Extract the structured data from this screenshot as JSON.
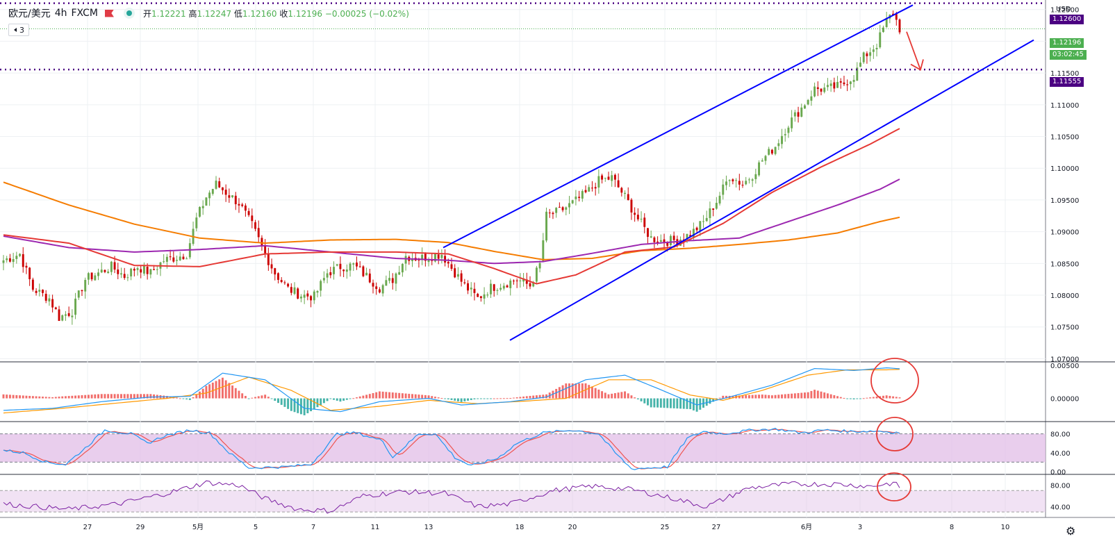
{
  "legend": {
    "symbol": "欧元/美元",
    "timeframe": "4h",
    "source": "FXCM",
    "open_label": "开",
    "open": "1.12221",
    "high_label": "高",
    "high": "1.12247",
    "low_label": "低",
    "low": "1.12160",
    "close_label": "收",
    "close": "1.12196",
    "change": "−0.00025 (−0.02%)",
    "indicator_count": "3"
  },
  "price_tags": {
    "top_line": "1.12600",
    "current_price": "1.12196",
    "countdown": "03:02:45",
    "support_line": "1.11555",
    "currency": "USD"
  },
  "colors": {
    "bull": "#6aa84f",
    "bear": "#cc0000",
    "channel": "#0000ff",
    "ma_fast": "#e53935",
    "ma_mid": "#9c27b0",
    "ma_slow": "#f57c00",
    "level": "#4b0082",
    "stoch_band": "#e1bee7"
  },
  "chart_data": [
    {
      "type": "candlestick",
      "name": "main",
      "x_labels": [
        "27",
        "29",
        "5月",
        "5",
        "7",
        "11",
        "13",
        "18",
        "20",
        "25",
        "27",
        "6月",
        "3",
        "8",
        "10"
      ],
      "y_ticks": [
        "1.12500",
        "1.12000",
        "1.11500",
        "1.11000",
        "1.10500",
        "1.10000",
        "1.09500",
        "1.09000",
        "1.08500",
        "1.08000",
        "1.07500",
        "1.07000"
      ],
      "ylim": [
        1.0695,
        1.1265
      ],
      "horizontal_levels": [
        1.126,
        1.11555
      ],
      "close_series_anchors": [
        [
          0,
          1.0855
        ],
        [
          5,
          1.0865
        ],
        [
          9,
          1.081
        ],
        [
          14,
          1.0795
        ],
        [
          17,
          1.0765
        ],
        [
          21,
          1.0775
        ],
        [
          25,
          1.0825
        ],
        [
          29,
          1.0835
        ],
        [
          33,
          1.0845
        ],
        [
          37,
          1.083
        ],
        [
          41,
          1.0845
        ],
        [
          45,
          1.0835
        ],
        [
          49,
          1.0855
        ],
        [
          53,
          1.086
        ],
        [
          56,
          1.0865
        ],
        [
          59,
          1.092
        ],
        [
          62,
          1.0955
        ],
        [
          65,
          1.0975
        ],
        [
          68,
          1.0962
        ],
        [
          72,
          1.0945
        ],
        [
          76,
          1.091
        ],
        [
          80,
          1.0865
        ],
        [
          83,
          1.0835
        ],
        [
          87,
          1.081
        ],
        [
          91,
          1.08
        ],
        [
          95,
          1.0798
        ],
        [
          99,
          1.0835
        ],
        [
          103,
          1.0845
        ],
        [
          107,
          1.0847
        ],
        [
          111,
          1.083
        ],
        [
          115,
          1.0812
        ],
        [
          119,
          1.0825
        ],
        [
          123,
          1.0862
        ],
        [
          127,
          1.0858
        ],
        [
          131,
          1.0862
        ],
        [
          134,
          1.0865
        ],
        [
          137,
          1.0843
        ],
        [
          141,
          1.0815
        ],
        [
          145,
          1.0795
        ],
        [
          149,
          1.0812
        ],
        [
          153,
          1.0818
        ],
        [
          157,
          1.0825
        ],
        [
          161,
          1.0815
        ],
        [
          164,
          1.0848
        ],
        [
          166,
          1.0925
        ],
        [
          170,
          1.0932
        ],
        [
          174,
          1.0945
        ],
        [
          178,
          1.096
        ],
        [
          182,
          1.098
        ],
        [
          186,
          1.0985
        ],
        [
          190,
          1.0955
        ],
        [
          194,
          1.092
        ],
        [
          198,
          1.089
        ],
        [
          202,
          1.0885
        ],
        [
          206,
          1.0887
        ],
        [
          210,
          1.0896
        ],
        [
          214,
          1.0915
        ],
        [
          218,
          1.0948
        ],
        [
          222,
          1.0988
        ],
        [
          226,
          1.0975
        ],
        [
          229,
          1.099
        ],
        [
          232,
          1.1013
        ],
        [
          236,
          1.1035
        ],
        [
          240,
          1.107
        ],
        [
          244,
          1.1095
        ],
        [
          248,
          1.1125
        ],
        [
          252,
          1.1125
        ],
        [
          256,
          1.113
        ],
        [
          260,
          1.1145
        ],
        [
          263,
          1.1175
        ],
        [
          267,
          1.1195
        ],
        [
          270,
          1.1232
        ],
        [
          272,
          1.1245
        ],
        [
          274,
          1.122
        ]
      ],
      "ma_fast_anchors": [
        [
          0,
          1.0895
        ],
        [
          20,
          1.0882
        ],
        [
          40,
          1.0847
        ],
        [
          60,
          1.0845
        ],
        [
          80,
          1.0865
        ],
        [
          100,
          1.0868
        ],
        [
          120,
          1.0868
        ],
        [
          136,
          1.0865
        ],
        [
          150,
          1.0842
        ],
        [
          163,
          1.0818
        ],
        [
          175,
          1.0832
        ],
        [
          190,
          1.0868
        ],
        [
          205,
          1.0876
        ],
        [
          220,
          1.0913
        ],
        [
          235,
          1.0962
        ],
        [
          250,
          1.1002
        ],
        [
          265,
          1.1038
        ],
        [
          276,
          1.1068
        ]
      ],
      "ma_mid_anchors": [
        [
          0,
          1.0893
        ],
        [
          20,
          1.0875
        ],
        [
          40,
          1.0868
        ],
        [
          60,
          1.0872
        ],
        [
          80,
          1.0878
        ],
        [
          100,
          1.0868
        ],
        [
          120,
          1.0858
        ],
        [
          136,
          1.0855
        ],
        [
          150,
          1.085
        ],
        [
          165,
          1.0853
        ],
        [
          180,
          1.0866
        ],
        [
          195,
          1.088
        ],
        [
          210,
          1.0886
        ],
        [
          225,
          1.089
        ],
        [
          240,
          1.0916
        ],
        [
          255,
          1.0942
        ],
        [
          268,
          1.0967
        ],
        [
          276,
          1.0988
        ]
      ],
      "ma_slow_anchors": [
        [
          0,
          1.0978
        ],
        [
          20,
          1.0942
        ],
        [
          40,
          1.0912
        ],
        [
          60,
          1.089
        ],
        [
          80,
          1.0882
        ],
        [
          100,
          1.0887
        ],
        [
          120,
          1.0888
        ],
        [
          136,
          1.0883
        ],
        [
          150,
          1.0869
        ],
        [
          165,
          1.0856
        ],
        [
          180,
          1.0858
        ],
        [
          195,
          1.087
        ],
        [
          210,
          1.0874
        ],
        [
          225,
          1.088
        ],
        [
          240,
          1.0887
        ],
        [
          255,
          1.0898
        ],
        [
          268,
          1.0916
        ],
        [
          276,
          1.0925
        ]
      ],
      "channel_upper": [
        [
          638,
          1.0875
        ],
        [
          1314,
          1.1257
        ]
      ],
      "channel_lower": [
        [
          734,
          1.0729
        ],
        [
          1488,
          1.1202
        ]
      ],
      "arrow": {
        "from": [
          1305,
          1.1215
        ],
        "to": [
          1325,
          1.1155
        ]
      }
    },
    {
      "type": "macd",
      "name": "macd",
      "y_ticks": [
        "0.00500",
        "0.00000"
      ],
      "ylim": [
        -0.0035,
        0.0055
      ],
      "note_values": "histogram derived from macd minus signal"
    },
    {
      "type": "line",
      "name": "stochastic",
      "y_ticks": [
        "80.00",
        "40.00",
        "0.00"
      ],
      "ylim": [
        0,
        100
      ],
      "band": [
        20,
        80
      ]
    },
    {
      "type": "line",
      "name": "rsi",
      "y_ticks": [
        "80.00",
        "40.00"
      ],
      "ylim": [
        25,
        95
      ],
      "band": [
        30,
        70
      ]
    }
  ]
}
